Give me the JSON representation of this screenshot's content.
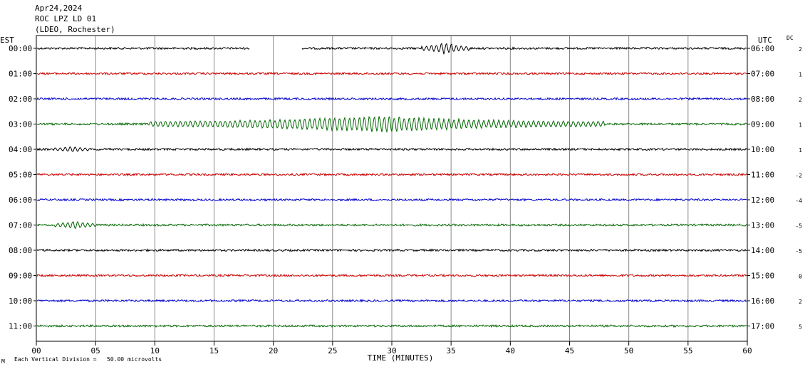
{
  "header": {
    "date": "Apr24,2024",
    "station": "ROC LPZ LD 01",
    "network": "(LDEO, Rochester)"
  },
  "chart_data": {
    "type": "line",
    "left_timezone": "EST",
    "right_timezone": "UTC",
    "dc_header": "DC",
    "xlabel": "TIME (MINUTES)",
    "x_ticks": [
      "00",
      "05",
      "10",
      "15",
      "20",
      "25",
      "30",
      "35",
      "40",
      "45",
      "50",
      "55",
      "60"
    ],
    "xlim": [
      0,
      60
    ],
    "footer_note": "Each Vertical Division =   50.00 microvolts",
    "corner_mark": "M",
    "grid": "vertical lines every 5 minutes",
    "colors": [
      "#000000",
      "#cc0000",
      "#0000cc",
      "#006600"
    ],
    "rows": [
      {
        "left": "00:00",
        "right": "06:00",
        "dc": "2",
        "color": "#000000",
        "gap": [
          18,
          22.4
        ],
        "events": [
          {
            "start": 32.5,
            "end": 36.5,
            "peak": 34.5,
            "amp": 8
          }
        ]
      },
      {
        "left": "01:00",
        "right": "07:00",
        "dc": "1",
        "color": "#cc0000",
        "events": []
      },
      {
        "left": "02:00",
        "right": "08:00",
        "dc": "2",
        "color": "#0000cc",
        "events": []
      },
      {
        "left": "03:00",
        "right": "09:00",
        "dc": "1",
        "color": "#006600",
        "events": [
          {
            "start": 9.5,
            "end": 48,
            "peak": 29,
            "amp": 11
          }
        ]
      },
      {
        "left": "04:00",
        "right": "10:00",
        "dc": "1",
        "color": "#000000",
        "events": [
          {
            "start": 1.5,
            "end": 4.5,
            "peak": 3,
            "amp": 3
          }
        ]
      },
      {
        "left": "05:00",
        "right": "11:00",
        "dc": "-2",
        "color": "#cc0000",
        "events": []
      },
      {
        "left": "06:00",
        "right": "12:00",
        "dc": "-4",
        "color": "#0000cc",
        "events": []
      },
      {
        "left": "07:00",
        "right": "13:00",
        "dc": "-5",
        "color": "#006600",
        "events": [
          {
            "start": 1.5,
            "end": 5,
            "peak": 3.2,
            "amp": 5
          }
        ]
      },
      {
        "left": "08:00",
        "right": "14:00",
        "dc": "-5",
        "color": "#000000",
        "events": []
      },
      {
        "left": "09:00",
        "right": "15:00",
        "dc": "0",
        "color": "#cc0000",
        "events": []
      },
      {
        "left": "10:00",
        "right": "16:00",
        "dc": "2",
        "color": "#0000cc",
        "events": []
      },
      {
        "left": "11:00",
        "right": "17:00",
        "dc": "5",
        "color": "#006600",
        "events": []
      }
    ]
  }
}
